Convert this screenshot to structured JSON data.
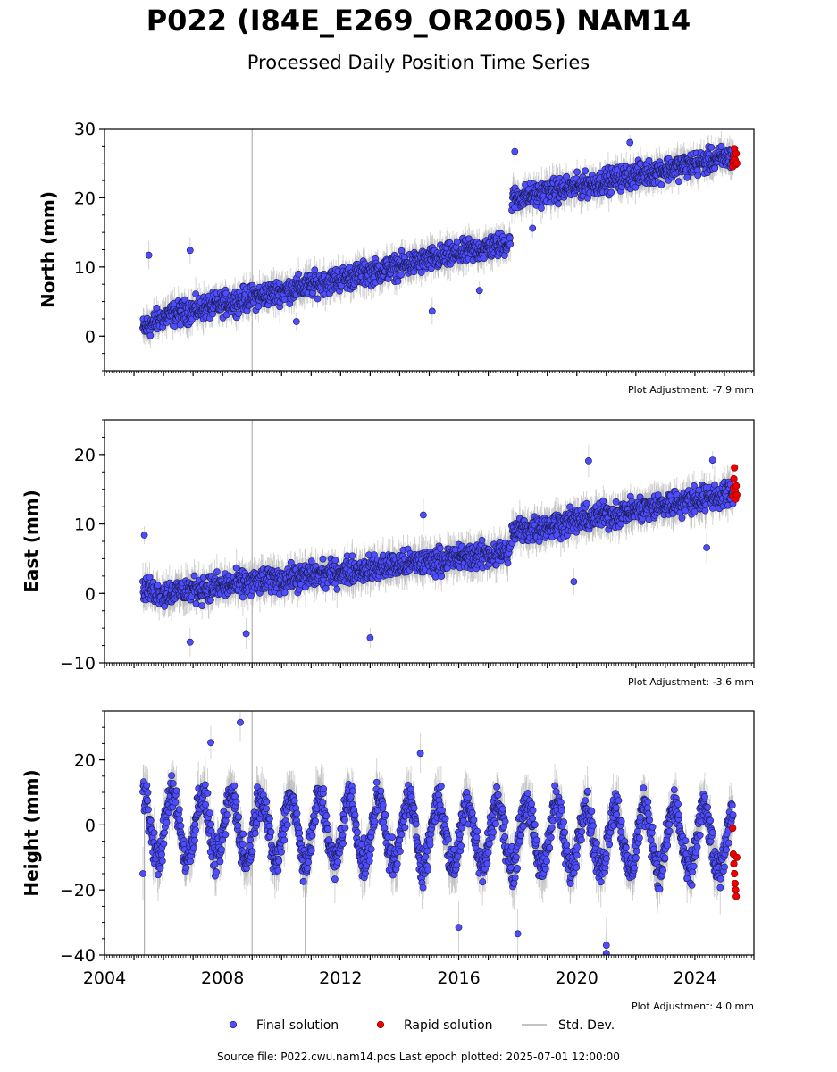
{
  "header": {
    "title": "P022 (I84E_E269_OR2005) NAM14",
    "subtitle": "Processed Daily Position Time Series"
  },
  "colors": {
    "final": "#4d4dff",
    "final_edge": "#1a1a4d",
    "rapid": "#ee0000",
    "std": "#b0b0b0",
    "axis": "#000000"
  },
  "legend": {
    "final_label": "Final solution",
    "rapid_label": "Rapid solution",
    "std_label": "Std. Dev."
  },
  "footer": {
    "source": "Source file: P022.cwu.nam14.pos  Last epoch plotted: 2025-07-01 12:00:00"
  },
  "chart_data": [
    {
      "type": "scatter",
      "ylabel": "North (mm)",
      "ylim": [
        -5,
        30
      ],
      "yticks": [
        0,
        10,
        20,
        30
      ],
      "xlim": [
        2004.0,
        2026.0
      ],
      "xticks": [
        2004,
        2008,
        2012,
        2016,
        2020,
        2024
      ],
      "show_x_tick_labels": false,
      "adjustment": "Plot Adjustment: -7.9 mm",
      "series": [
        {
          "name": "Final solution",
          "kind": "trend",
          "segments": [
            {
              "x0": 2005.3,
              "y0": 1.0,
              "x1": 2005.9,
              "y1": 2.5
            },
            {
              "x0": 2005.95,
              "y0": 2.8,
              "x1": 2017.75,
              "y1": 13.5
            },
            {
              "x0": 2017.8,
              "y0": 19.8,
              "x1": 2025.3,
              "y1": 26.0
            }
          ],
          "noise": 1.4,
          "error": 1.8
        },
        {
          "name": "Rapid solution",
          "x": [
            2025.28,
            2025.3,
            2025.32,
            2025.34,
            2025.36,
            2025.38,
            2025.4,
            2025.42
          ],
          "y": [
            24.5,
            25.2,
            26.0,
            27.1,
            25.5,
            24.8,
            26.4,
            25.0
          ]
        }
      ],
      "outliers": [
        [
          2005.5,
          11.7
        ],
        [
          2006.9,
          12.4
        ],
        [
          2015.1,
          3.6
        ],
        [
          2016.7,
          6.6
        ],
        [
          2017.9,
          26.7
        ],
        [
          2018.5,
          15.6
        ],
        [
          2021.8,
          28.0
        ],
        [
          2010.5,
          2.1
        ]
      ],
      "vlines": [
        {
          "x": 2009.0,
          "y0": -5,
          "y1": 30
        }
      ]
    },
    {
      "type": "scatter",
      "ylabel": "East (mm)",
      "ylim": [
        -10,
        25
      ],
      "yticks": [
        -10,
        0,
        10,
        20
      ],
      "xlim": [
        2004.0,
        2026.0
      ],
      "xticks": [
        2004,
        2008,
        2012,
        2016,
        2020,
        2024
      ],
      "show_x_tick_labels": false,
      "adjustment": "Plot Adjustment: -3.6 mm",
      "series": [
        {
          "name": "Final solution",
          "kind": "trend",
          "segments": [
            {
              "x0": 2005.3,
              "y0": 0.5,
              "x1": 2005.9,
              "y1": 0.3
            },
            {
              "x0": 2005.95,
              "y0": 0.0,
              "x1": 2017.75,
              "y1": 6.0
            },
            {
              "x0": 2017.8,
              "y0": 8.8,
              "x1": 2025.3,
              "y1": 14.5
            }
          ],
          "noise": 1.5,
          "error": 2.0
        },
        {
          "name": "Rapid solution",
          "x": [
            2025.28,
            2025.3,
            2025.32,
            2025.34,
            2025.36,
            2025.38,
            2025.4,
            2025.42
          ],
          "y": [
            14.0,
            15.2,
            16.5,
            18.1,
            14.8,
            13.6,
            15.5,
            14.2
          ]
        }
      ],
      "outliers": [
        [
          2005.35,
          8.4
        ],
        [
          2006.9,
          -7.0
        ],
        [
          2013.0,
          -6.4
        ],
        [
          2014.8,
          11.3
        ],
        [
          2020.4,
          19.1
        ],
        [
          2019.9,
          1.7
        ],
        [
          2024.4,
          6.6
        ],
        [
          2024.6,
          19.2
        ],
        [
          2008.8,
          -5.8
        ]
      ],
      "vlines": [
        {
          "x": 2009.0,
          "y0": -10,
          "y1": 25
        }
      ]
    },
    {
      "type": "scatter",
      "ylabel": "Height (mm)",
      "ylim": [
        -40,
        35
      ],
      "yticks": [
        -40,
        -20,
        0,
        20
      ],
      "xlim": [
        2004.0,
        2026.0
      ],
      "xticks": [
        2004,
        2008,
        2012,
        2016,
        2020,
        2024
      ],
      "show_x_tick_labels": true,
      "adjustment": "Plot Adjustment: 4.0 mm",
      "series": [
        {
          "name": "Final solution",
          "kind": "seasonal",
          "segments": [
            {
              "x0": 2005.3,
              "y0": 0.0,
              "x1": 2025.3,
              "y1": -5.0
            }
          ],
          "amplitude": 10,
          "noise": 4.5,
          "error": 6.0
        },
        {
          "name": "Rapid solution",
          "x": [
            2025.28,
            2025.3,
            2025.32,
            2025.34,
            2025.36,
            2025.38,
            2025.4,
            2025.42
          ],
          "y": [
            -1.0,
            -9.0,
            -12.0,
            -15.0,
            -18.0,
            -20.0,
            -22.0,
            -10.0
          ]
        }
      ],
      "outliers": [
        [
          2008.6,
          31.5
        ],
        [
          2007.6,
          25.3
        ],
        [
          2014.7,
          22.0
        ],
        [
          2021.0,
          -37.0
        ],
        [
          2021.0,
          -39.5
        ],
        [
          2018.0,
          -33.5
        ],
        [
          2016.0,
          -31.5
        ],
        [
          2005.3,
          -15.0
        ]
      ],
      "vlines": [
        {
          "x": 2009.0,
          "y0": -40,
          "y1": 35
        },
        {
          "x": 2005.35,
          "y0": -40,
          "y1": 10
        },
        {
          "x": 2010.8,
          "y0": -40,
          "y1": -18
        }
      ]
    }
  ]
}
